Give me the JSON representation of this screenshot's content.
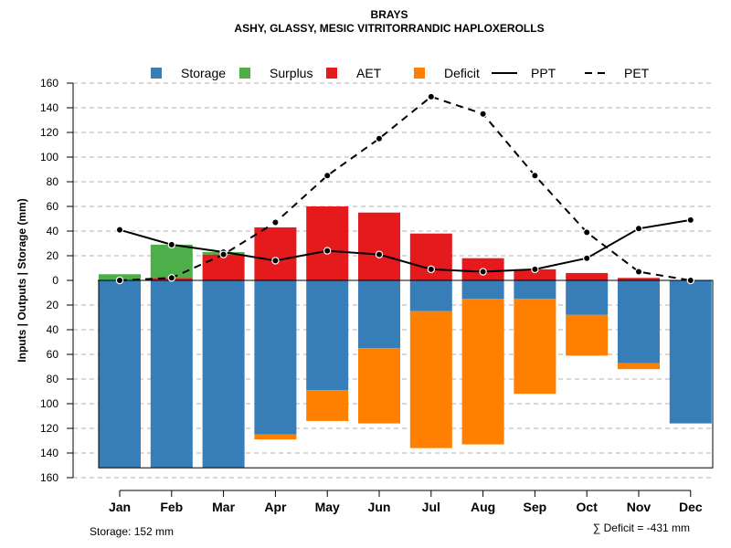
{
  "chart_data": {
    "type": "bar",
    "title": "BRAYS",
    "subtitle": "ASHY, GLASSY, MESIC VITRITORRANDIC HAPLOXEROLLS",
    "ylabel": "Inputs | Outputs | Storage    (mm)",
    "categories": [
      "Jan",
      "Feb",
      "Mar",
      "Apr",
      "May",
      "Jun",
      "Jul",
      "Aug",
      "Sep",
      "Oct",
      "Nov",
      "Dec"
    ],
    "ylim": [
      -160,
      160
    ],
    "yticks": [
      160,
      140,
      120,
      100,
      80,
      60,
      40,
      20,
      0,
      20,
      40,
      60,
      80,
      100,
      120,
      140,
      160
    ],
    "ytick_values": [
      160,
      140,
      120,
      100,
      80,
      60,
      40,
      20,
      0,
      -20,
      -40,
      -60,
      -80,
      -100,
      -120,
      -140,
      -160
    ],
    "grid": true,
    "colors": {
      "storage": "#377eb8",
      "surplus": "#4daf4a",
      "aet": "#e41a1c",
      "deficit": "#ff7f00",
      "lines": "#000000"
    },
    "legend": [
      {
        "key": "storage",
        "label": "Storage",
        "kind": "box"
      },
      {
        "key": "surplus",
        "label": "Surplus",
        "kind": "box"
      },
      {
        "key": "aet",
        "label": "AET",
        "kind": "box"
      },
      {
        "key": "deficit",
        "label": "Deficit",
        "kind": "box"
      },
      {
        "key": "ppt",
        "label": "PPT",
        "kind": "solid"
      },
      {
        "key": "pet",
        "label": "PET",
        "kind": "dashed"
      }
    ],
    "series": [
      {
        "name": "AET",
        "values": [
          0,
          2,
          21,
          43,
          60,
          55,
          38,
          18,
          9,
          6,
          2,
          0
        ]
      },
      {
        "name": "Surplus",
        "values": [
          5,
          27,
          2,
          0,
          0,
          0,
          0,
          0,
          0,
          0,
          0,
          0
        ]
      },
      {
        "name": "Storage",
        "values": [
          -152,
          -152,
          -152,
          -125,
          -89,
          -55,
          -25,
          -15,
          -15,
          -28,
          -67,
          -116
        ]
      },
      {
        "name": "Deficit",
        "values": [
          0,
          0,
          0,
          -4,
          -25,
          -61,
          -111,
          -118,
          -77,
          -33,
          -5,
          0
        ]
      },
      {
        "name": "PPT",
        "values": [
          41,
          29,
          23,
          16,
          24,
          21,
          9,
          7,
          9,
          18,
          42,
          49
        ]
      },
      {
        "name": "PET",
        "values": [
          0,
          2,
          21,
          47,
          85,
          115,
          149,
          135,
          85,
          39,
          7,
          0
        ]
      }
    ],
    "storage_note": "Storage: 152 mm",
    "deficit_note": "∑ Deficit = -431 mm"
  }
}
